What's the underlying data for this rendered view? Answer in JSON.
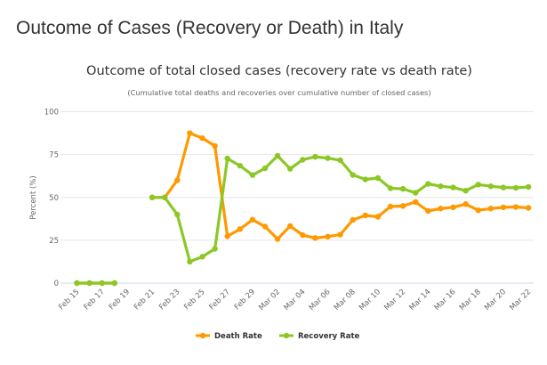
{
  "page": {
    "title": "Outcome of Cases (Recovery or Death) in Italy"
  },
  "chart_data": {
    "type": "line",
    "title": "Outcome of total closed cases (recovery rate vs death rate)",
    "subtitle": "(Cumulative total deaths and recoveries over cumulative number of closed cases)",
    "xlabel": "",
    "ylabel": "Percent (%)",
    "ylim": [
      0,
      100
    ],
    "yticks": [
      0,
      25,
      50,
      75,
      100
    ],
    "grid": true,
    "legend_position": "bottom-center",
    "x": [
      "Feb 15",
      "Feb 16",
      "Feb 17",
      "Feb 18",
      "Feb 19",
      "Feb 20",
      "Feb 21",
      "Feb 22",
      "Feb 23",
      "Feb 24",
      "Feb 25",
      "Feb 26",
      "Feb 27",
      "Feb 28",
      "Feb 29",
      "Mar 01",
      "Mar 02",
      "Mar 03",
      "Mar 04",
      "Mar 05",
      "Mar 06",
      "Mar 07",
      "Mar 08",
      "Mar 09",
      "Mar 10",
      "Mar 11",
      "Mar 12",
      "Mar 13",
      "Mar 14",
      "Mar 15",
      "Mar 16",
      "Mar 17",
      "Mar 18",
      "Mar 19",
      "Mar 20",
      "Mar 21",
      "Mar 22"
    ],
    "xtick_labels": [
      "Feb 15",
      "Feb 17",
      "Feb 19",
      "Feb 21",
      "Feb 23",
      "Feb 25",
      "Feb 27",
      "Feb 29",
      "Mar 02",
      "Mar 04",
      "Mar 06",
      "Mar 08",
      "Mar 10",
      "Mar 12",
      "Mar 14",
      "Mar 16",
      "Mar 18",
      "Mar 20",
      "Mar 22"
    ],
    "series": [
      {
        "name": "Death Rate",
        "color": "#FF9900",
        "values": [
          0,
          0,
          0,
          0,
          null,
          null,
          50,
          50,
          60,
          87.5,
          84.6,
          80,
          27.3,
          31.5,
          37,
          33,
          25.7,
          33.3,
          28,
          26.3,
          27.1,
          28.3,
          36.9,
          39.5,
          38.7,
          44.7,
          45,
          47.3,
          42.1,
          43.5,
          44.2,
          46.1,
          42.5,
          43.5,
          44.2,
          44.4,
          43.9
        ]
      },
      {
        "name": "Recovery Rate",
        "color": "#8BC825",
        "values": [
          0,
          0,
          0,
          0,
          null,
          null,
          50,
          50,
          40,
          12.5,
          15.4,
          20,
          72.7,
          68.5,
          63,
          67,
          74.3,
          66.7,
          72,
          73.7,
          72.9,
          71.7,
          63.1,
          60.5,
          61.3,
          55.3,
          55,
          52.7,
          57.9,
          56.5,
          55.8,
          53.9,
          57.5,
          56.5,
          55.8,
          55.6,
          56.1
        ]
      }
    ]
  }
}
